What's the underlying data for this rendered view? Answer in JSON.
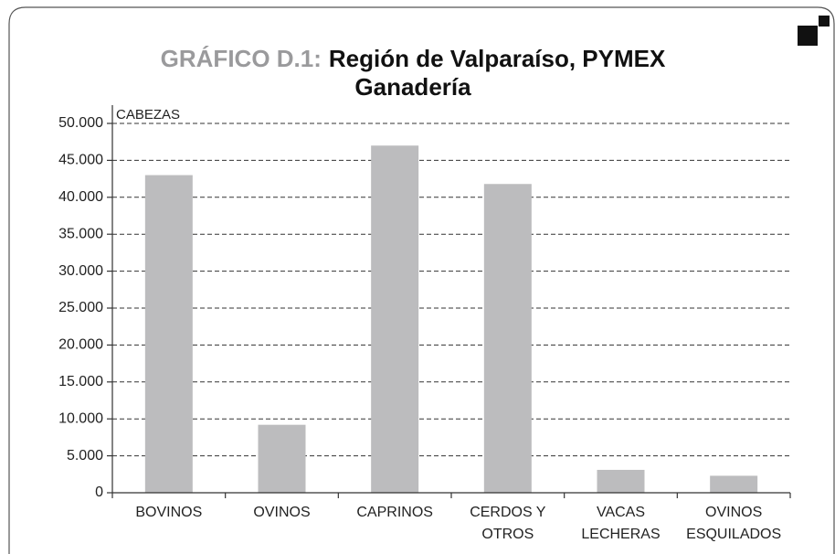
{
  "chart_data": {
    "type": "bar",
    "title_prefix": "GRÁFICO D.1:",
    "title": [
      "Región de Valparaíso, PYMEX",
      "Ganadería"
    ],
    "y_label": "CABEZAS",
    "categories": [
      [
        "BOVINOS"
      ],
      [
        "OVINOS"
      ],
      [
        "CAPRINOS"
      ],
      [
        "CERDOS Y",
        "OTROS"
      ],
      [
        "VACAS",
        "LECHERAS"
      ],
      [
        "OVINOS",
        "ESQUILADOS"
      ]
    ],
    "values": [
      43000,
      9200,
      47000,
      41800,
      3100,
      2300
    ],
    "color": "#bcbcbe",
    "ylim": [
      0,
      50000
    ],
    "yticks": [
      0,
      {
        "value": 5000,
        "label": "5.000"
      },
      {
        "value": 10000,
        "label": "10.000"
      },
      {
        "value": 15000,
        "label": "15.000"
      },
      {
        "value": 20000,
        "label": "20.000"
      },
      {
        "value": 25000,
        "label": "25.000"
      },
      {
        "value": 30000,
        "label": "30.000"
      },
      {
        "value": 35000,
        "label": "35.000"
      },
      {
        "value": 40000,
        "label": "40.000"
      },
      {
        "value": 45000,
        "label": "45.000"
      },
      {
        "value": 50000,
        "label": "50.000"
      }
    ],
    "grid": true
  }
}
